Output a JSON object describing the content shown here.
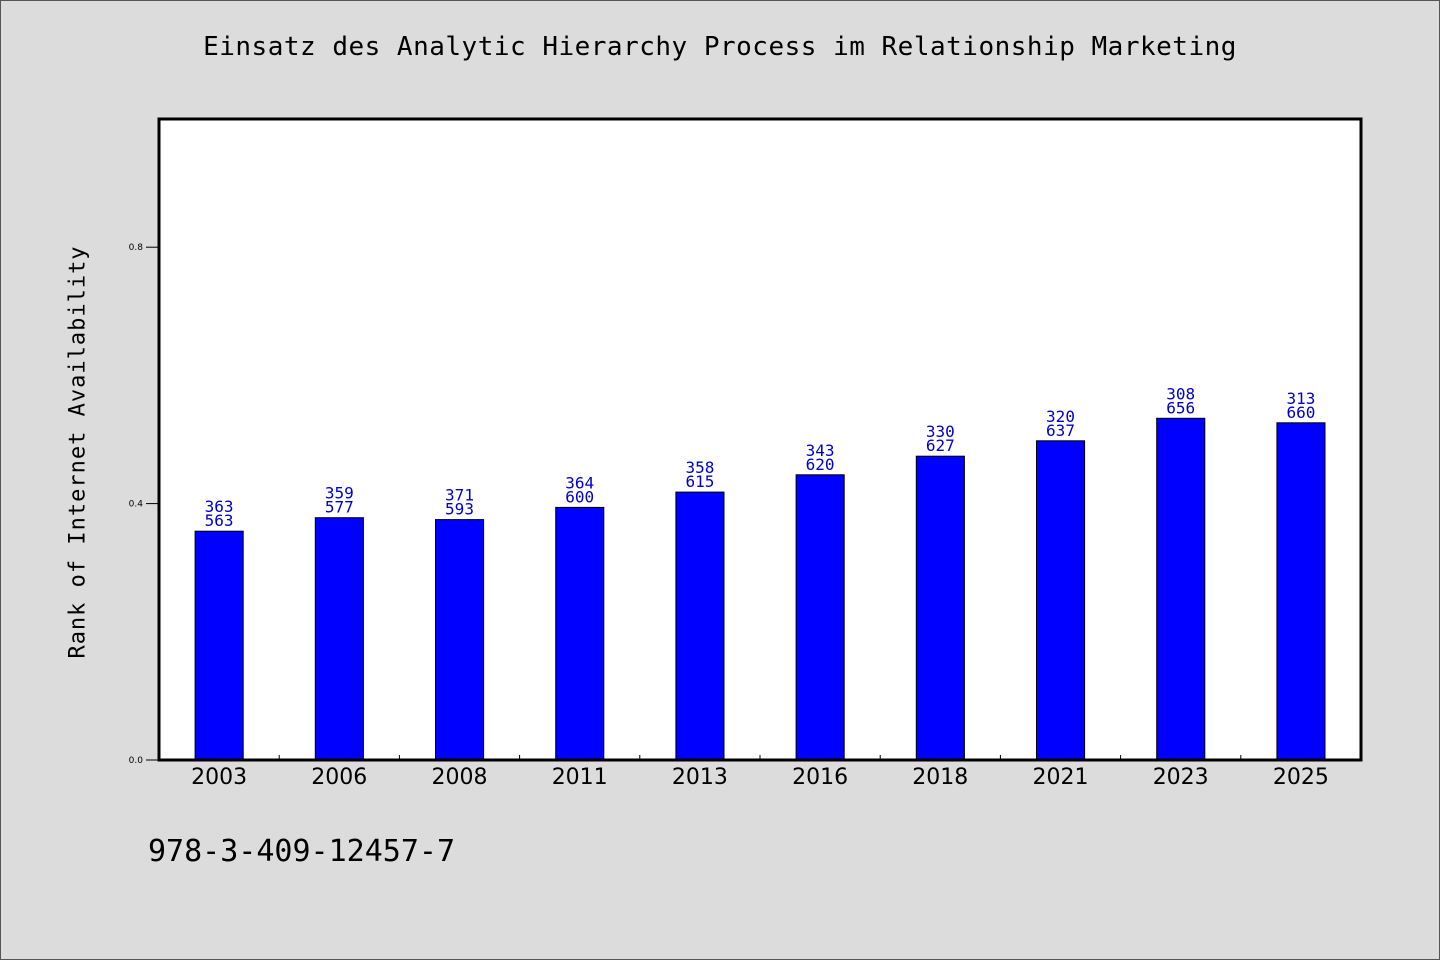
{
  "chart_data": {
    "type": "bar",
    "title": "Einsatz des Analytic Hierarchy Process im Relationship Marketing",
    "ylabel": "Rank of Internet Availability",
    "xlabel": "",
    "categories": [
      "2003",
      "2006",
      "2008",
      "2011",
      "2013",
      "2016",
      "2018",
      "2021",
      "2023",
      "2025"
    ],
    "values": [
      0.357,
      0.378,
      0.375,
      0.394,
      0.418,
      0.445,
      0.474,
      0.498,
      0.533,
      0.526
    ],
    "labels_top": [
      "363",
      "359",
      "371",
      "364",
      "358",
      "343",
      "330",
      "320",
      "308",
      "313"
    ],
    "labels_bottom": [
      "563",
      "577",
      "593",
      "600",
      "615",
      "620",
      "627",
      "637",
      "656",
      "660"
    ],
    "ylim": [
      0,
      1.0
    ],
    "yticks": [
      {
        "value": 0.0,
        "label": "0.0"
      },
      {
        "value": 0.4,
        "label": "0.4"
      },
      {
        "value": 0.8,
        "label": "0.8"
      }
    ],
    "grid": false,
    "bar_color": "#0000ff",
    "label_color": "#0000cc",
    "plot_background": "#ffffff",
    "page_background": "#dcdcdc"
  },
  "footer": {
    "isbn": "978-3-409-12457-7"
  }
}
